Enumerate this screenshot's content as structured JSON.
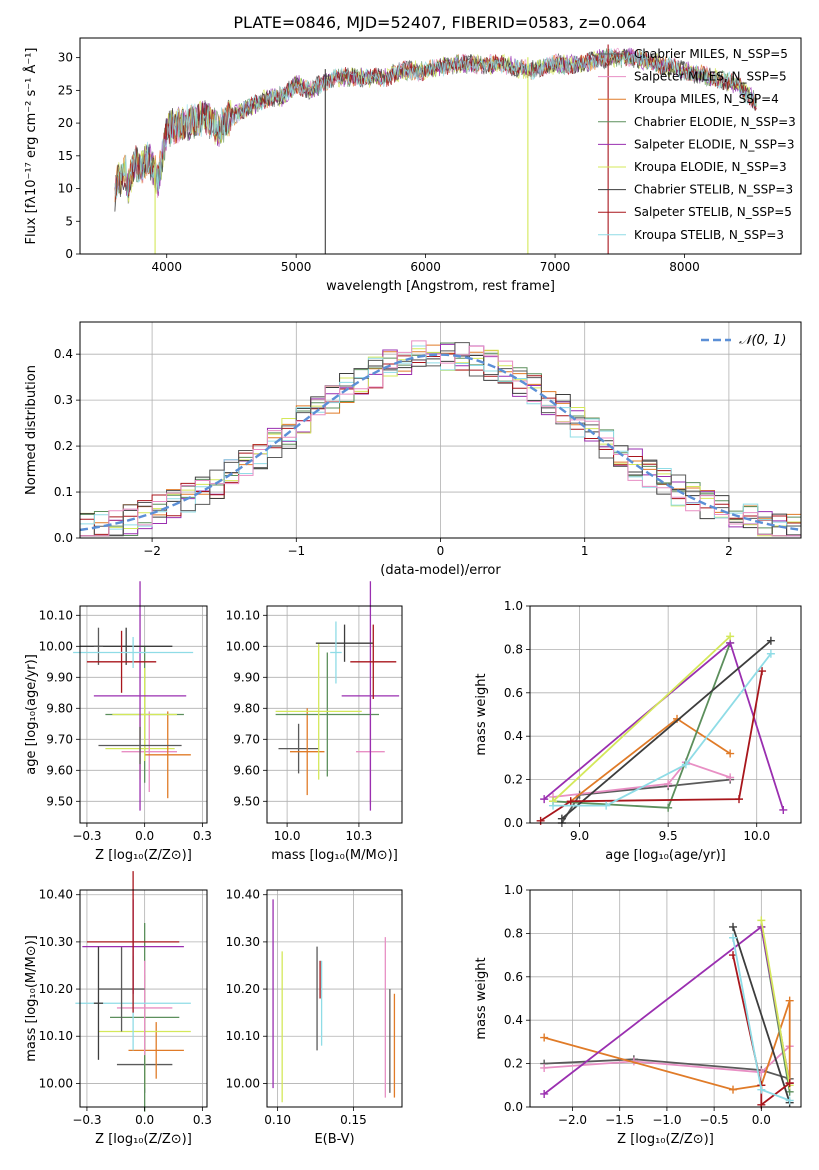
{
  "figure": {
    "title": "PLATE=0846, MJD=52407, FIBERID=0583, z=0.064"
  },
  "colors": [
    "#5a5a5a",
    "#e88fc4",
    "#e07b28",
    "#5c8f5c",
    "#9a2fb0",
    "#d4e85a",
    "#3d3d3d",
    "#a8161c",
    "#8fdce6"
  ],
  "chart_data": [
    {
      "id": "spectrum",
      "type": "line",
      "title": "PLATE=0846, MJD=52407, FIBERID=0583, z=0.064",
      "xlabel": "wavelength [Angstrom, rest frame]",
      "ylabel": "Flux [fλ10⁻¹⁷ erg cm⁻² s⁻¹ Å⁻¹]",
      "xlim": [
        3330,
        8900
      ],
      "ylim": [
        0,
        33
      ],
      "xticks": [
        4000,
        5000,
        6000,
        7000,
        8000
      ],
      "yticks": [
        0,
        5,
        10,
        15,
        20,
        25,
        30
      ],
      "grid": false,
      "legend_placement": "top-right",
      "anchors": {
        "x": [
          3600,
          3620,
          3650,
          3680,
          3700,
          3720,
          3760,
          3800,
          3850,
          3900,
          3930,
          3970,
          4000,
          4100,
          4200,
          4300,
          4400,
          4500,
          4600,
          4700,
          4800,
          4900,
          5000,
          5100,
          5200,
          5300,
          5400,
          5500,
          5600,
          5700,
          5800,
          5900,
          6000,
          6200,
          6400,
          6600,
          6800,
          7000,
          7200,
          7400,
          7600,
          7800,
          8000,
          8200,
          8400,
          8560
        ],
        "y": [
          9,
          12,
          11,
          13,
          10,
          12,
          14,
          13,
          15,
          13,
          11,
          15,
          19,
          20,
          20,
          21,
          19,
          21,
          22,
          23,
          24,
          24,
          26,
          25,
          26,
          27,
          27,
          27,
          27,
          27,
          28,
          28,
          28,
          29,
          29,
          29,
          28,
          29,
          29,
          30,
          30,
          29,
          28,
          27,
          26,
          23
        ]
      },
      "spikes": [
        {
          "x": 3910,
          "y": 0
        },
        {
          "x": 5225,
          "y": 0
        },
        {
          "x": 6790,
          "y": 0
        },
        {
          "x": 7410,
          "y": 0
        }
      ],
      "legend": [
        "Chabrier MILES, N_SSP=5",
        "Salpeter MILES, N_SSP=5",
        "Kroupa MILES, N_SSP=4",
        "Chabrier ELODIE, N_SSP=3",
        "Salpeter ELODIE, N_SSP=3",
        "Kroupa ELODIE, N_SSP=3",
        "Chabrier STELIB, N_SSP=3",
        "Salpeter STELIB, N_SSP=5",
        "Kroupa STELIB, N_SSP=3"
      ]
    },
    {
      "id": "residuals",
      "type": "line",
      "xlabel": "(data-model)/error",
      "ylabel": "Normed distribution",
      "xlim": [
        -2.5,
        2.5
      ],
      "ylim": [
        0,
        0.47
      ],
      "xticks": [
        -2,
        -1,
        0,
        1,
        2
      ],
      "yticks": [
        0.0,
        0.1,
        0.2,
        0.3,
        0.4
      ],
      "grid": true,
      "legend_placement": "top-right",
      "bins": 50,
      "hist_curve": "normal",
      "normal_label": "𝒩(0, 1)"
    },
    {
      "id": "age-vs-z",
      "type": "scatter",
      "xlabel": "Z [log₁₀(Z/Z⊙)]",
      "ylabel": "age  [log₁₀(age/yr)]",
      "xlim": [
        -0.28,
        0.27
      ],
      "ylim": [
        9.43,
        10.13
      ],
      "xticks": [
        -0.25,
        0.0,
        0.25
      ],
      "yticks": [
        9.5,
        9.6,
        9.7,
        9.8,
        9.9,
        10.0,
        10.1
      ],
      "grid": true,
      "points": [
        {
          "x": -0.02,
          "y": 9.67,
          "xerr": 0.15,
          "yerr": 0.1,
          "color": 5
        },
        {
          "x": 0.02,
          "y": 9.66,
          "xerr": 0.12,
          "yerr": 0.13,
          "color": 1
        },
        {
          "x": 0.1,
          "y": 9.65,
          "xerr": 0.1,
          "yerr": 0.14,
          "color": 2
        },
        {
          "x": 0.0,
          "y": 9.78,
          "xerr": 0.17,
          "yerr": 0.22,
          "color": 3
        },
        {
          "x": 0.0,
          "y": 9.78,
          "xerr": 0.14,
          "yerr": 0.15,
          "color": 5
        },
        {
          "x": -0.02,
          "y": 9.84,
          "xerr": 0.2,
          "yerr": 0.37,
          "color": 4
        },
        {
          "x": -0.08,
          "y": 10.0,
          "xerr": 0.2,
          "yerr": 0.06,
          "color": 6
        },
        {
          "x": -0.2,
          "y": 10.0,
          "xerr": 0.02,
          "yerr": 0.06,
          "color": 0
        },
        {
          "x": -0.1,
          "y": 9.95,
          "xerr": 0.15,
          "yerr": 0.1,
          "color": 7
        },
        {
          "x": -0.05,
          "y": 9.98,
          "xerr": 0.26,
          "yerr": 0.05,
          "color": 8
        },
        {
          "x": -0.02,
          "y": 9.68,
          "xerr": 0.18,
          "yerr": 0.06,
          "color": 0
        }
      ]
    },
    {
      "id": "age-vs-mass",
      "type": "scatter",
      "xlabel": "mass [log₁₀(M/M⊙)]",
      "ylabel": "",
      "xlim": [
        9.93,
        10.4
      ],
      "ylim": [
        9.43,
        10.13
      ],
      "xticks": [
        10.0,
        10.25
      ],
      "yticks": [
        9.5,
        9.6,
        9.7,
        9.8,
        9.9,
        10.0,
        10.1
      ],
      "grid": true,
      "points": [
        {
          "x": 10.04,
          "y": 9.67,
          "xerr": 0.07,
          "yerr": 0.08,
          "color": 0
        },
        {
          "x": 10.29,
          "y": 9.66,
          "xerr": 0.05,
          "yerr": 0.17,
          "color": 1
        },
        {
          "x": 10.07,
          "y": 9.66,
          "xerr": 0.06,
          "yerr": 0.14,
          "color": 2
        },
        {
          "x": 10.14,
          "y": 9.78,
          "xerr": 0.18,
          "yerr": 0.2,
          "color": 3
        },
        {
          "x": 10.11,
          "y": 9.79,
          "xerr": 0.15,
          "yerr": 0.22,
          "color": 5
        },
        {
          "x": 10.29,
          "y": 9.84,
          "xerr": 0.1,
          "yerr": 0.37,
          "color": 4
        },
        {
          "x": 10.2,
          "y": 10.01,
          "xerr": 0.1,
          "yerr": 0.06,
          "color": 6
        },
        {
          "x": 10.3,
          "y": 9.95,
          "xerr": 0.08,
          "yerr": 0.12,
          "color": 7
        },
        {
          "x": 10.17,
          "y": 9.98,
          "xerr": 0.02,
          "yerr": 0.1,
          "color": 8
        }
      ]
    },
    {
      "id": "weight-vs-age",
      "type": "line",
      "xlabel": "age  [log₁₀(age/yr)]",
      "ylabel": "mass weight",
      "xlim": [
        8.72,
        10.25
      ],
      "ylim": [
        0,
        1
      ],
      "xticks": [
        9.0,
        9.5,
        10.0
      ],
      "yticks": [
        0.0,
        0.2,
        0.4,
        0.6,
        0.8,
        1.0
      ],
      "grid": true,
      "series": [
        {
          "color": 0,
          "x": [
            8.9,
            9.0,
            9.5,
            9.85
          ],
          "y": [
            0.0,
            0.13,
            0.17,
            0.2
          ]
        },
        {
          "color": 1,
          "x": [
            8.85,
            9.5,
            9.6,
            9.85
          ],
          "y": [
            0.12,
            0.18,
            0.28,
            0.21
          ]
        },
        {
          "color": 2,
          "x": [
            8.95,
            9.55,
            9.85
          ],
          "y": [
            0.1,
            0.48,
            0.32
          ]
        },
        {
          "color": 3,
          "x": [
            8.85,
            9.5,
            9.85
          ],
          "y": [
            0.1,
            0.07,
            0.83
          ]
        },
        {
          "color": 4,
          "x": [
            8.8,
            9.85,
            10.15
          ],
          "y": [
            0.11,
            0.83,
            0.06
          ]
        },
        {
          "color": 5,
          "x": [
            8.85,
            9.85
          ],
          "y": [
            0.1,
            0.86
          ]
        },
        {
          "color": 6,
          "x": [
            8.9,
            10.08
          ],
          "y": [
            0.02,
            0.84
          ]
        },
        {
          "color": 7,
          "x": [
            8.78,
            8.95,
            9.9,
            10.03
          ],
          "y": [
            0.01,
            0.1,
            0.11,
            0.7
          ]
        },
        {
          "color": 8,
          "x": [
            8.85,
            9.15,
            9.6,
            10.08
          ],
          "y": [
            0.08,
            0.08,
            0.27,
            0.78
          ]
        }
      ]
    },
    {
      "id": "mass-vs-z",
      "type": "scatter",
      "xlabel": "Z [log₁₀(Z/Z⊙)]",
      "ylabel": "mass [log₁₀(M/M⊙)]",
      "xlim": [
        -0.28,
        0.27
      ],
      "ylim": [
        9.95,
        10.41
      ],
      "xticks": [
        -0.25,
        0.0,
        0.25
      ],
      "yticks": [
        10.0,
        10.1,
        10.2,
        10.3,
        10.4
      ],
      "grid": true,
      "points": [
        {
          "x": 0.0,
          "y": 10.04,
          "xerr": 0.12,
          "yerr": 0.06,
          "color": 0
        },
        {
          "x": 0.05,
          "y": 10.07,
          "xerr": 0.12,
          "yerr": 0.06,
          "color": 2
        },
        {
          "x": 0.0,
          "y": 10.11,
          "xerr": 0.2,
          "yerr": 0.12,
          "color": 5
        },
        {
          "x": 0.0,
          "y": 10.14,
          "xerr": 0.15,
          "yerr": 0.2,
          "color": 3
        },
        {
          "x": 0.0,
          "y": 10.16,
          "xerr": 0.12,
          "yerr": 0.1,
          "color": 1
        },
        {
          "x": -0.05,
          "y": 10.17,
          "xerr": 0.25,
          "yerr": 0.1,
          "color": 8
        },
        {
          "x": -0.1,
          "y": 10.2,
          "xerr": 0.1,
          "yerr": 0.09,
          "color": 0
        },
        {
          "x": -0.05,
          "y": 10.29,
          "xerr": 0.22,
          "yerr": 0.1,
          "color": 4
        },
        {
          "x": -0.05,
          "y": 10.3,
          "xerr": 0.2,
          "yerr": 0.15,
          "color": 7
        },
        {
          "x": -0.2,
          "y": 10.17,
          "xerr": 0.02,
          "yerr": 0.12,
          "color": 6
        }
      ]
    },
    {
      "id": "mass-vs-ebv",
      "type": "scatter",
      "xlabel": "E(B-V)",
      "ylabel": "",
      "xlim": [
        0.093,
        0.182
      ],
      "ylim": [
        9.95,
        10.41
      ],
      "xticks": [
        0.1,
        0.15
      ],
      "yticks": [
        10.0,
        10.1,
        10.2,
        10.3,
        10.4
      ],
      "grid": true,
      "points": [
        {
          "x": 0.097,
          "y": 10.19,
          "xerr": 0.0,
          "yerr": 0.2,
          "color": 4
        },
        {
          "x": 0.103,
          "y": 10.12,
          "xerr": 0.0,
          "yerr": 0.16,
          "color": 5
        },
        {
          "x": 0.126,
          "y": 10.18,
          "xerr": 0.0,
          "yerr": 0.11,
          "color": 0
        },
        {
          "x": 0.128,
          "y": 10.22,
          "xerr": 0.0,
          "yerr": 0.04,
          "color": 7
        },
        {
          "x": 0.129,
          "y": 10.17,
          "xerr": 0.0,
          "yerr": 0.09,
          "color": 8
        },
        {
          "x": 0.171,
          "y": 10.14,
          "xerr": 0.0,
          "yerr": 0.17,
          "color": 1
        },
        {
          "x": 0.174,
          "y": 10.09,
          "xerr": 0.0,
          "yerr": 0.11,
          "color": 0
        },
        {
          "x": 0.177,
          "y": 10.08,
          "xerr": 0.0,
          "yerr": 0.11,
          "color": 2
        }
      ]
    },
    {
      "id": "weight-vs-z",
      "type": "line",
      "xlabel": "Z [log₁₀(Z/Z⊙)]",
      "ylabel": "mass weight",
      "xlim": [
        -2.45,
        0.42
      ],
      "ylim": [
        0,
        1
      ],
      "xticks": [
        -2.0,
        -1.5,
        -1.0,
        -0.5,
        0.0
      ],
      "yticks": [
        0.0,
        0.2,
        0.4,
        0.6,
        0.8,
        1.0
      ],
      "grid": true,
      "series": [
        {
          "color": 0,
          "x": [
            -2.3,
            -1.35,
            0.0,
            0.3
          ],
          "y": [
            0.2,
            0.22,
            0.17,
            0.13
          ]
        },
        {
          "color": 1,
          "x": [
            -2.3,
            -1.35,
            0.0,
            0.3
          ],
          "y": [
            0.18,
            0.21,
            0.16,
            0.28
          ]
        },
        {
          "color": 2,
          "x": [
            -2.3,
            -0.3,
            0.0,
            0.3,
            0.3
          ],
          "y": [
            0.32,
            0.08,
            0.1,
            0.49,
            0.11
          ]
        },
        {
          "color": 3,
          "x": [
            0.0,
            0.3
          ],
          "y": [
            0.83,
            0.07
          ]
        },
        {
          "color": 4,
          "x": [
            -2.3,
            0.0,
            0.3
          ],
          "y": [
            0.06,
            0.83,
            0.11
          ]
        },
        {
          "color": 5,
          "x": [
            0.0,
            0.3
          ],
          "y": [
            0.86,
            0.1
          ]
        },
        {
          "color": 6,
          "x": [
            -0.3,
            0.3
          ],
          "y": [
            0.83,
            0.02
          ]
        },
        {
          "color": 7,
          "x": [
            -0.3,
            0.0,
            0.0,
            0.3
          ],
          "y": [
            0.7,
            0.1,
            0.01,
            0.11
          ]
        },
        {
          "color": 8,
          "x": [
            -0.3,
            0.0,
            0.3
          ],
          "y": [
            0.78,
            0.08,
            0.03
          ]
        }
      ]
    }
  ]
}
